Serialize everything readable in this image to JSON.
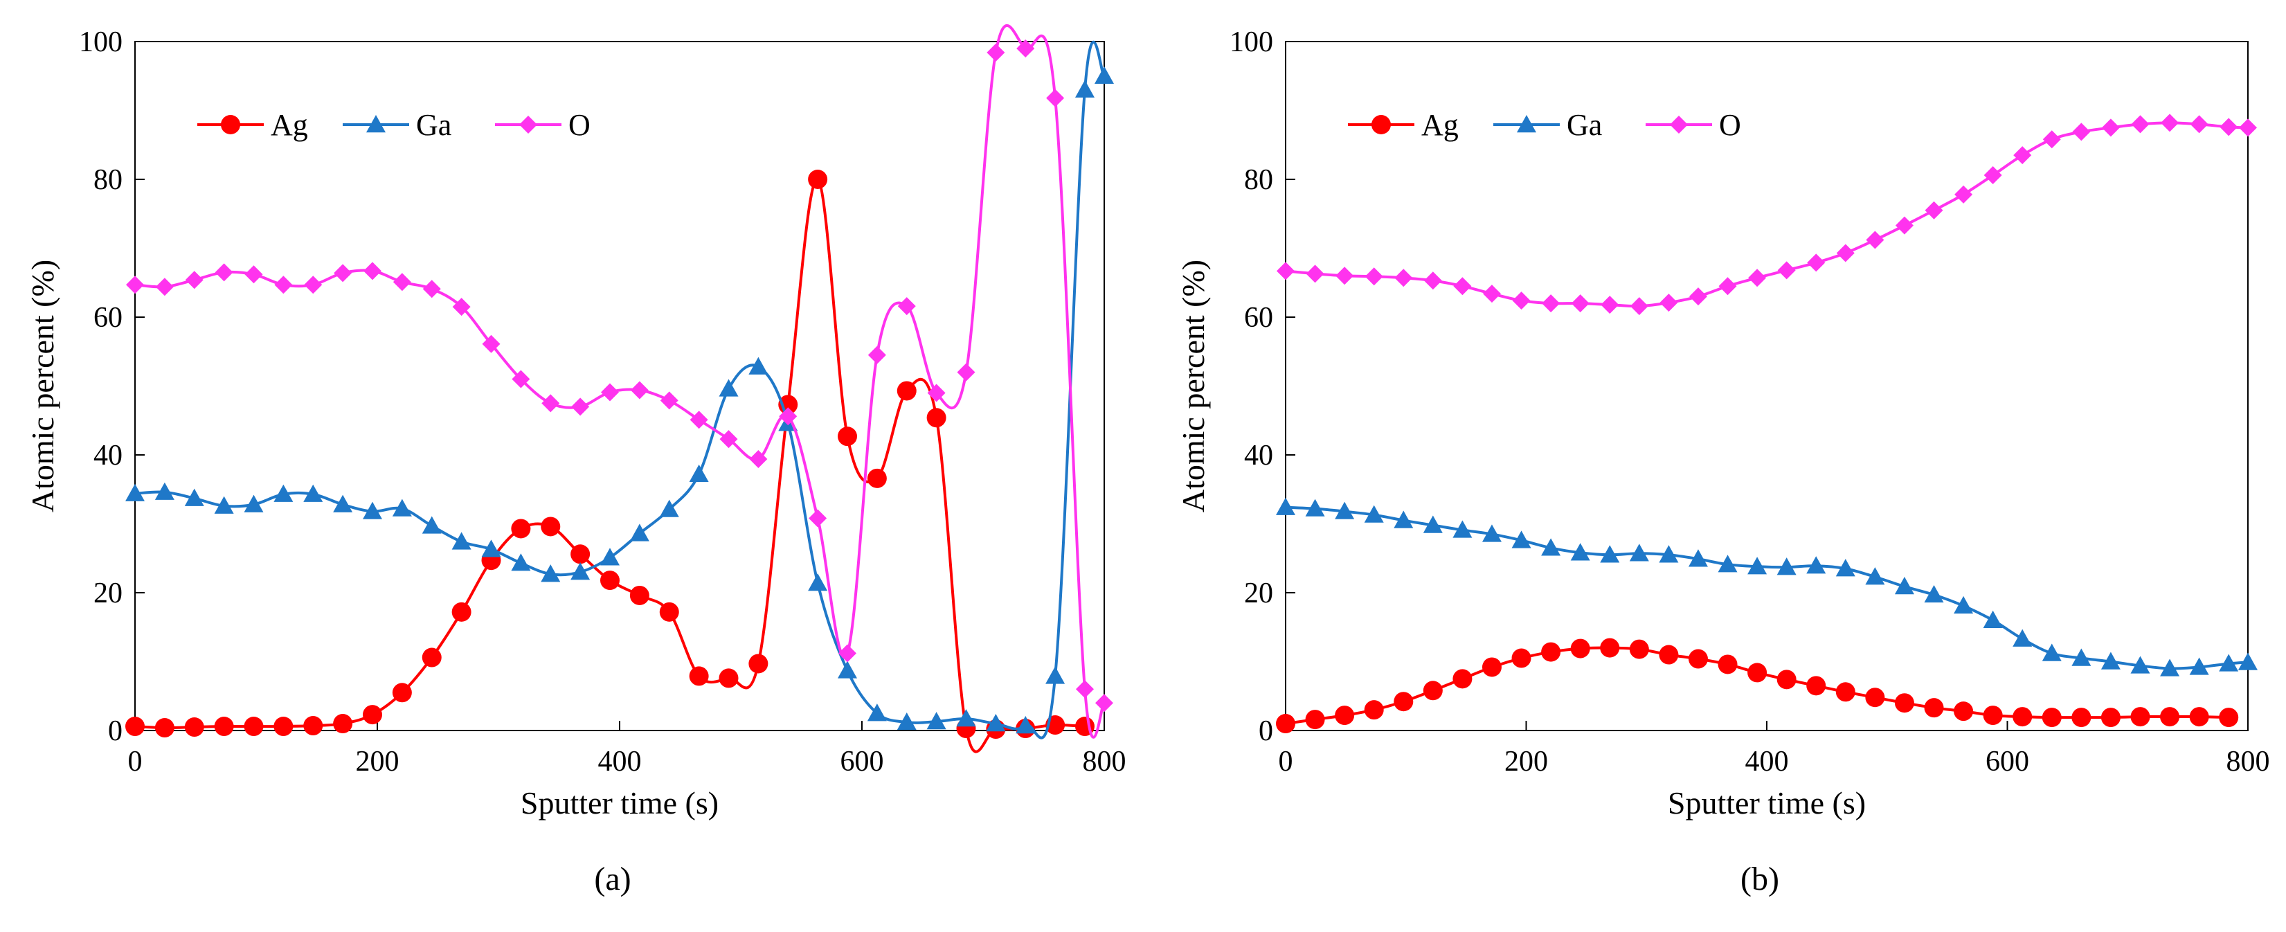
{
  "chart_data": [
    {
      "id": "a",
      "type": "line",
      "panel_label": "(a)",
      "title": "",
      "xlabel": "Sputter time (s)",
      "ylabel": "Atomic percent (%)",
      "xlim": [
        0,
        800
      ],
      "ylim": [
        0,
        100
      ],
      "xticks": [
        "0",
        "200",
        "400",
        "600",
        "800"
      ],
      "yticks": [
        "0",
        "20",
        "40",
        "60",
        "80",
        "100"
      ],
      "grid": false,
      "legend_position": "top-left",
      "x": [
        0,
        24.5,
        49,
        73.5,
        98,
        122.5,
        147,
        171.5,
        196,
        220.5,
        245,
        269.5,
        294,
        318.5,
        343,
        367.5,
        392,
        416.5,
        441,
        465.5,
        490,
        514.5,
        539,
        563.5,
        588,
        612.5,
        637,
        661.5,
        686,
        710.5,
        735,
        759.5,
        784,
        800
      ],
      "series": [
        {
          "name": "Ag",
          "color": "#ff0000",
          "marker": "circle",
          "values": [
            0.6,
            0.4,
            0.5,
            0.6,
            0.6,
            0.6,
            0.7,
            1.0,
            2.3,
            5.5,
            10.6,
            17.2,
            24.7,
            29.3,
            29.6,
            25.6,
            21.8,
            19.6,
            17.2,
            7.9,
            7.6,
            9.7,
            47.3,
            80.0,
            42.7,
            36.6,
            49.3,
            45.4,
            0.3,
            0.2,
            0.3,
            0.8,
            0.6,
            null
          ]
        },
        {
          "name": "Ga",
          "color": "#1f78c8",
          "marker": "triangle",
          "values": [
            34.4,
            34.6,
            33.7,
            32.6,
            32.8,
            34.3,
            34.3,
            32.8,
            31.8,
            32.2,
            29.7,
            27.4,
            26.3,
            24.3,
            22.7,
            23.0,
            25.1,
            28.6,
            32.1,
            37.2,
            49.6,
            52.8,
            44.6,
            21.4,
            8.7,
            2.5,
            1.2,
            1.3,
            1.7,
            1.0,
            0.7,
            7.9,
            93.0,
            95.0
          ]
        },
        {
          "name": "O",
          "color": "#ff33ee",
          "marker": "diamond",
          "values": [
            64.7,
            64.4,
            65.4,
            66.5,
            66.2,
            64.7,
            64.7,
            66.4,
            66.7,
            65.1,
            64.1,
            61.5,
            56.1,
            51.0,
            47.5,
            47.0,
            49.1,
            49.4,
            47.9,
            45.1,
            42.3,
            39.4,
            45.6,
            30.8,
            11.2,
            54.5,
            61.6,
            49.0,
            52.0,
            98.4,
            99.0,
            91.8,
            6.0,
            4.0
          ]
        }
      ]
    },
    {
      "id": "b",
      "type": "line",
      "panel_label": "(b)",
      "title": "",
      "xlabel": "Sputter time (s)",
      "ylabel": "Atomic percent (%)",
      "xlim": [
        0,
        800
      ],
      "ylim": [
        0,
        100
      ],
      "xticks": [
        "0",
        "200",
        "400",
        "600",
        "800"
      ],
      "yticks": [
        "0",
        "20",
        "40",
        "60",
        "80",
        "100"
      ],
      "grid": false,
      "legend_position": "top-left",
      "x": [
        0,
        24.5,
        49,
        73.5,
        98,
        122.5,
        147,
        171.5,
        196,
        220.5,
        245,
        269.5,
        294,
        318.5,
        343,
        367.5,
        392,
        416.5,
        441,
        465.5,
        490,
        514.5,
        539,
        563.5,
        588,
        612.5,
        637,
        661.5,
        686,
        710.5,
        735,
        759.5,
        784,
        800
      ],
      "series": [
        {
          "name": "Ag",
          "color": "#ff0000",
          "marker": "circle",
          "values": [
            1.0,
            1.6,
            2.2,
            3.0,
            4.2,
            5.8,
            7.5,
            9.2,
            10.5,
            11.4,
            11.9,
            12.0,
            11.8,
            11.0,
            10.4,
            9.6,
            8.4,
            7.4,
            6.5,
            5.6,
            4.8,
            4.0,
            3.3,
            2.8,
            2.2,
            2.0,
            1.9,
            1.9,
            1.9,
            2.0,
            2.0,
            2.0,
            1.9,
            null
          ]
        },
        {
          "name": "Ga",
          "color": "#1f78c8",
          "marker": "triangle",
          "values": [
            32.4,
            32.2,
            31.8,
            31.3,
            30.5,
            29.8,
            29.1,
            28.5,
            27.6,
            26.5,
            25.8,
            25.5,
            25.7,
            25.5,
            24.9,
            24.1,
            23.8,
            23.7,
            23.9,
            23.5,
            22.3,
            20.9,
            19.7,
            18.1,
            16.0,
            13.3,
            11.2,
            10.5,
            10.0,
            9.4,
            9.0,
            9.2,
            9.7,
            9.9
          ]
        },
        {
          "name": "O",
          "color": "#ff33ee",
          "marker": "diamond",
          "values": [
            66.7,
            66.3,
            66.0,
            65.9,
            65.7,
            65.3,
            64.5,
            63.4,
            62.4,
            62.0,
            62.0,
            61.8,
            61.6,
            62.1,
            63.0,
            64.5,
            65.7,
            66.8,
            67.9,
            69.3,
            71.2,
            73.3,
            75.5,
            77.8,
            80.6,
            83.5,
            85.8,
            86.9,
            87.5,
            88.0,
            88.2,
            88.0,
            87.6,
            87.5
          ]
        }
      ]
    }
  ]
}
